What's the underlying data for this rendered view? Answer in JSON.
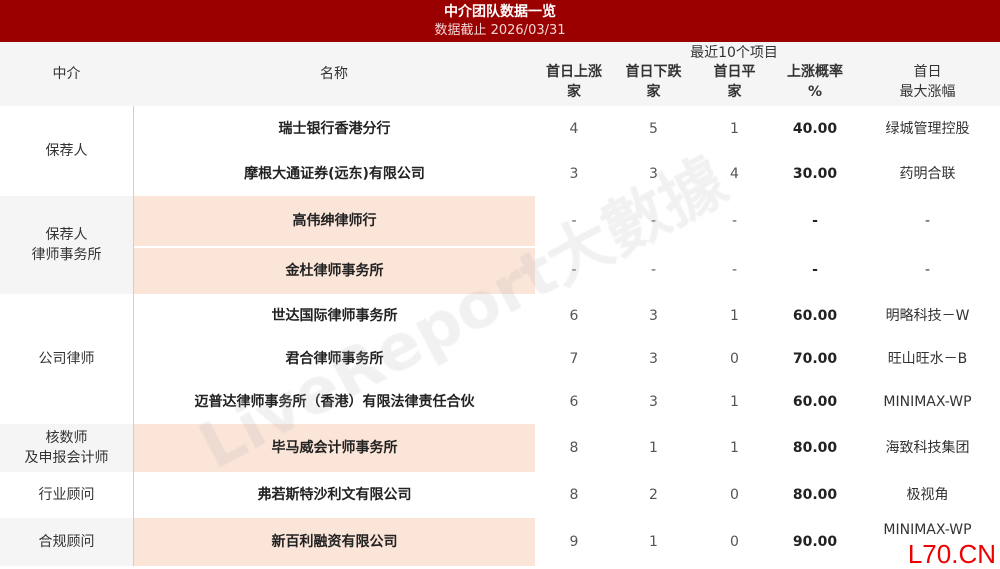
{
  "header": {
    "title": "中介团队数据一览",
    "subtitle": "数据截止 2026/03/31"
  },
  "columns": {
    "intermediary": "中介",
    "name": "名称",
    "recent": "最近10个项目",
    "up": "首日上涨\n家",
    "down": "首日下跌\n家",
    "flat": "首日平\n家",
    "rate": "上涨概率\n%",
    "max": "首日\n最大涨幅"
  },
  "groups": [
    {
      "label": "保荐人",
      "rows": [
        {
          "name": "瑞士银行香港分行",
          "up": "4",
          "down": "5",
          "flat": "1",
          "rate": "40.00",
          "max": "绿城管理控股"
        },
        {
          "name": "摩根大通证券(远东)有限公司",
          "up": "3",
          "down": "3",
          "flat": "4",
          "rate": "30.00",
          "max": "药明合联"
        }
      ]
    },
    {
      "label": "保荐人\n律师事务所",
      "rows": [
        {
          "name": "高伟绅律师行",
          "up": "-",
          "down": "-",
          "flat": "-",
          "rate": "-",
          "max": "-"
        },
        {
          "name": "金杜律师事务所",
          "up": "-",
          "down": "-",
          "flat": "-",
          "rate": "-",
          "max": "-"
        }
      ]
    },
    {
      "label": "公司律师",
      "rows": [
        {
          "name": "世达国际律师事务所",
          "up": "6",
          "down": "3",
          "flat": "1",
          "rate": "60.00",
          "max": "明略科技－W"
        },
        {
          "name": "君合律师事务所",
          "up": "7",
          "down": "3",
          "flat": "0",
          "rate": "70.00",
          "max": "旺山旺水－B"
        },
        {
          "name": "迈普达律师事务所（香港）有限法律责任合伙",
          "up": "6",
          "down": "3",
          "flat": "1",
          "rate": "60.00",
          "max": "MINIMAX-WP"
        }
      ]
    },
    {
      "label": "核数师\n及申报会计师",
      "rows": [
        {
          "name": "毕马威会计师事务所",
          "up": "8",
          "down": "1",
          "flat": "1",
          "rate": "80.00",
          "max": "海致科技集团"
        }
      ]
    },
    {
      "label": "行业顾问",
      "rows": [
        {
          "name": "弗若斯特沙利文有限公司",
          "up": "8",
          "down": "2",
          "flat": "0",
          "rate": "80.00",
          "max": "极视角"
        }
      ]
    },
    {
      "label": "合规顾问",
      "rows": [
        {
          "name": "新百利融资有限公司",
          "up": "9",
          "down": "1",
          "flat": "0",
          "rate": "90.00",
          "max": "MINIMAX-WP"
        }
      ]
    }
  ],
  "watermark": "LiveReport大數據",
  "corner_mark": "L70.CN",
  "colors": {
    "header_bg": "#9b0000",
    "pink": "#fbe5d9",
    "gray": "#f5f5f5"
  }
}
